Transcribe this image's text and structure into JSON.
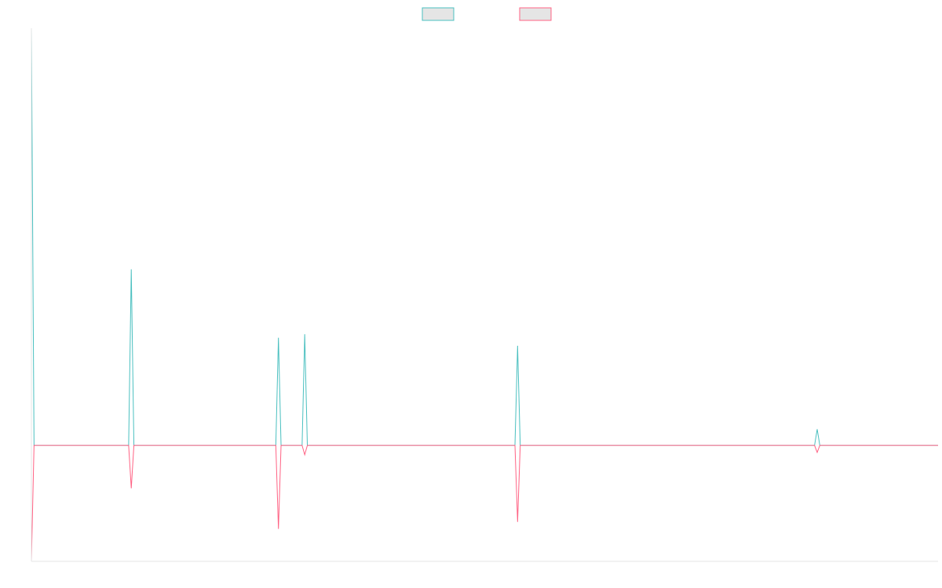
{
  "chart_data": {
    "type": "line",
    "title": "",
    "xlabel": "",
    "ylabel": "",
    "legend_position": "top-center",
    "grid": false,
    "n_points": 346,
    "ylim": [
      -1.0,
      3.6
    ],
    "series": [
      {
        "color": "#4bc0c0",
        "fill": "#e5e5e5",
        "baseline": 0,
        "points": [
          {
            "x": 0,
            "y": 3.6
          },
          {
            "x": 38,
            "y": 1.52
          },
          {
            "x": 94,
            "y": 0.93
          },
          {
            "x": 104,
            "y": 0.96
          },
          {
            "x": 185,
            "y": 0.86
          },
          {
            "x": 299,
            "y": 0.14
          }
        ]
      },
      {
        "color": "#ff6384",
        "fill": "#e5e5e5",
        "baseline": 0,
        "points": [
          {
            "x": 0,
            "y": -1.0
          },
          {
            "x": 38,
            "y": -0.37
          },
          {
            "x": 94,
            "y": -0.72
          },
          {
            "x": 104,
            "y": -0.08
          },
          {
            "x": 185,
            "y": -0.66
          },
          {
            "x": 299,
            "y": -0.06
          }
        ]
      }
    ]
  }
}
